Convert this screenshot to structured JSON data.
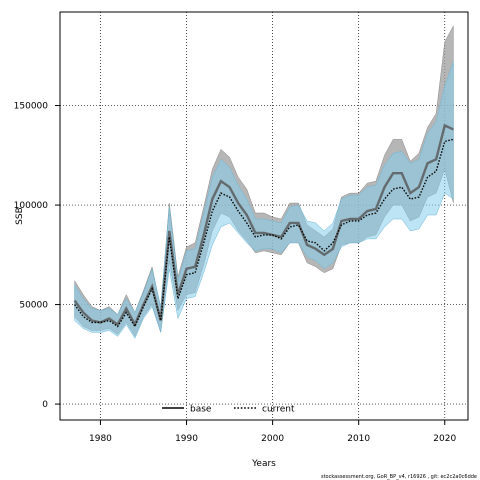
{
  "chart_data": {
    "type": "line",
    "title": "",
    "xlabel": "Years",
    "ylabel": "SSB",
    "xlim": [
      1975.3,
      2022.7
    ],
    "ylim": [
      -8000,
      197000
    ],
    "x_ticks": [
      1980,
      1990,
      2000,
      2010,
      2020
    ],
    "y_ticks": [
      0,
      50000,
      100000,
      150000
    ],
    "x_tick_labels": [
      "1980",
      "1990",
      "2000",
      "2010",
      "2020"
    ],
    "y_tick_labels": [
      "0",
      "50000",
      "100000",
      "150000"
    ],
    "grid": true,
    "legend_position": "bottom-center",
    "colors": {
      "base_band": "#9e9e9e",
      "current_band": "#87ceeb",
      "base_line": "#000000",
      "current_line": "#000000"
    },
    "x": [
      1977,
      1978,
      1979,
      1980,
      1981,
      1982,
      1983,
      1984,
      1985,
      1986,
      1987,
      1988,
      1989,
      1990,
      1991,
      1992,
      1993,
      1994,
      1995,
      1996,
      1997,
      1998,
      1999,
      2000,
      2001,
      2002,
      2003,
      2004,
      2005,
      2006,
      2007,
      2008,
      2009,
      2010,
      2011,
      2012,
      2013,
      2014,
      2015,
      2016,
      2017,
      2018,
      2019,
      2020,
      2021
    ],
    "series": [
      {
        "name": "base",
        "line_style": "solid",
        "values": [
          52000,
          46000,
          42000,
          41000,
          43000,
          40000,
          48000,
          40000,
          50000,
          59000,
          42000,
          87000,
          55000,
          68000,
          69000,
          85000,
          103000,
          112000,
          109000,
          101000,
          95000,
          86000,
          86000,
          85000,
          84000,
          91000,
          91000,
          80000,
          78000,
          75000,
          78000,
          92000,
          93000,
          93000,
          97000,
          98000,
          109000,
          116000,
          116000,
          106000,
          109000,
          121000,
          123000,
          140000,
          138000
        ],
        "lower": [
          44000,
          39000,
          37000,
          37000,
          38000,
          35000,
          41000,
          34000,
          44000,
          50000,
          36000,
          72000,
          47000,
          55000,
          56000,
          70000,
          87000,
          96000,
          94000,
          87000,
          82000,
          76000,
          77000,
          76000,
          75000,
          81000,
          81000,
          71000,
          69000,
          66000,
          68000,
          80000,
          81000,
          81000,
          84000,
          85000,
          94000,
          100000,
          100000,
          92000,
          94000,
          104000,
          106000,
          118000,
          101000
        ],
        "upper": [
          62000,
          55000,
          49000,
          47000,
          49000,
          45000,
          55000,
          46000,
          57000,
          69000,
          48000,
          101000,
          64000,
          79000,
          81000,
          99000,
          118000,
          128000,
          124000,
          114000,
          108000,
          96000,
          96000,
          94000,
          93000,
          101000,
          101000,
          90000,
          87000,
          84000,
          88000,
          104000,
          106000,
          106000,
          111000,
          112000,
          125000,
          133000,
          133000,
          122000,
          126000,
          139000,
          146000,
          182000,
          190000
        ]
      },
      {
        "name": "current",
        "line_style": "dotted",
        "values": [
          50000,
          44000,
          41000,
          41000,
          42000,
          39000,
          46000,
          39000,
          49000,
          58000,
          42000,
          84000,
          53000,
          65000,
          66000,
          81000,
          97000,
          106000,
          104000,
          97000,
          91000,
          84000,
          85000,
          85000,
          83000,
          89000,
          90000,
          82000,
          81000,
          77000,
          81000,
          90000,
          92000,
          92000,
          95000,
          96000,
          103000,
          108000,
          109000,
          103000,
          104000,
          114000,
          117000,
          132000,
          133000
        ],
        "lower": [
          42000,
          38000,
          36000,
          36000,
          37000,
          34000,
          40000,
          33000,
          43000,
          49000,
          36000,
          68000,
          43000,
          53000,
          54000,
          66000,
          80000,
          89000,
          91000,
          86000,
          81000,
          77000,
          78000,
          78000,
          76000,
          81000,
          81000,
          74000,
          72000,
          68000,
          71000,
          79000,
          81000,
          81000,
          83000,
          83000,
          89000,
          93000,
          93000,
          87000,
          88000,
          95000,
          95000,
          106000,
          103000
        ],
        "upper": [
          60000,
          53000,
          48000,
          47000,
          48000,
          45000,
          53000,
          46000,
          56000,
          68000,
          49000,
          99000,
          62000,
          77000,
          78000,
          96000,
          114000,
          123000,
          119000,
          110000,
          103000,
          93000,
          93000,
          92000,
          91000,
          99000,
          100000,
          92000,
          91000,
          87000,
          91000,
          103000,
          105000,
          105000,
          109000,
          110000,
          120000,
          126000,
          127000,
          121000,
          123000,
          136000,
          142000,
          160000,
          172000
        ]
      }
    ]
  },
  "footer": {
    "text": "stockassessment.org, GoR_BP_v4, r16926 , git: ec2c2a0c6dde"
  }
}
